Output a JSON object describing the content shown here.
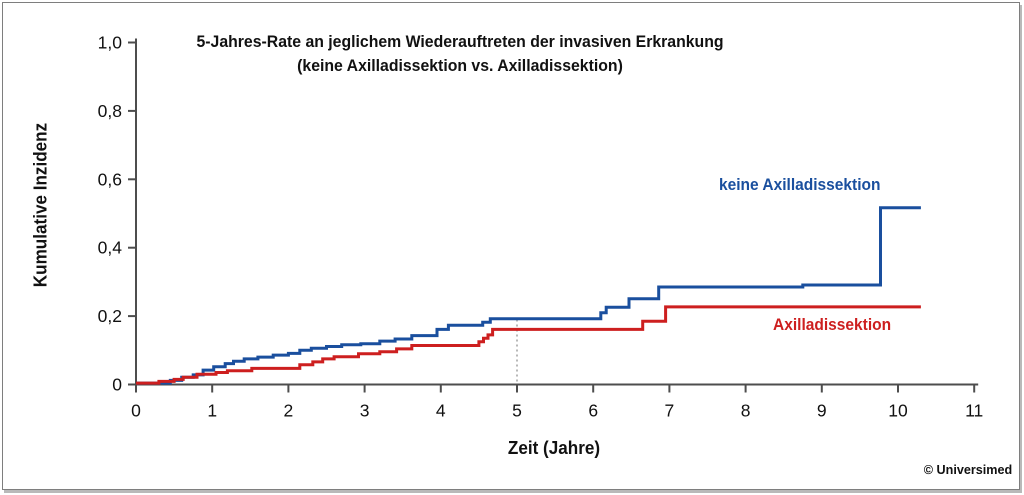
{
  "credit": "© Universimed",
  "chart_data": {
    "type": "line",
    "subtype": "step-after-cumulative-incidence",
    "title_line1": "5-Jahres-Rate an jeglichem Wiederauftreten der invasiven Erkrankung",
    "title_line2": "(keine Axilladissektion vs. Axilladissektion)",
    "xlabel": "Zeit (Jahre)",
    "ylabel": "Kumulative Inzidenz",
    "xlim": [
      0,
      11
    ],
    "ylim": [
      0,
      1.0
    ],
    "grid": "off",
    "legend_position": "labels-on-plot",
    "x_ticks": [
      0,
      1,
      2,
      3,
      4,
      5,
      6,
      7,
      8,
      9,
      10,
      11
    ],
    "y_ticks": [
      {
        "value": 0,
        "label": "0"
      },
      {
        "value": 0.2,
        "label": "0,2"
      },
      {
        "value": 0.4,
        "label": "0,4"
      },
      {
        "value": 0.6,
        "label": "0,6"
      },
      {
        "value": 0.8,
        "label": "0,8"
      },
      {
        "value": 1.0,
        "label": "1,0"
      }
    ],
    "reference_line": {
      "x": 5,
      "from": 0,
      "to": 0.19,
      "style": "dashed",
      "color": "#999999"
    },
    "axis_color": "#4d4d4d",
    "text_color": "#111111",
    "series": [
      {
        "name": "keine Axilladissektion",
        "color": "#1a4f9e",
        "end_x": 10.3,
        "points": [
          [
            0,
            0.004
          ],
          [
            0.45,
            0.012
          ],
          [
            0.6,
            0.021
          ],
          [
            0.75,
            0.028
          ],
          [
            0.88,
            0.042
          ],
          [
            1.02,
            0.052
          ],
          [
            1.17,
            0.061
          ],
          [
            1.28,
            0.068
          ],
          [
            1.42,
            0.075
          ],
          [
            1.6,
            0.08
          ],
          [
            1.8,
            0.086
          ],
          [
            2.0,
            0.091
          ],
          [
            2.15,
            0.1
          ],
          [
            2.3,
            0.106
          ],
          [
            2.5,
            0.111
          ],
          [
            2.7,
            0.116
          ],
          [
            2.95,
            0.119
          ],
          [
            3.2,
            0.127
          ],
          [
            3.4,
            0.133
          ],
          [
            3.62,
            0.143
          ],
          [
            3.95,
            0.161
          ],
          [
            4.1,
            0.173
          ],
          [
            4.55,
            0.182
          ],
          [
            4.65,
            0.192
          ],
          [
            6.1,
            0.21
          ],
          [
            6.17,
            0.226
          ],
          [
            6.47,
            0.251
          ],
          [
            6.86,
            0.285
          ],
          [
            8.75,
            0.291
          ],
          [
            9.77,
            0.517
          ]
        ]
      },
      {
        "name": "Axilladissektion",
        "color": "#cd1f1f",
        "end_x": 10.3,
        "points": [
          [
            0,
            0.004
          ],
          [
            0.3,
            0.009
          ],
          [
            0.5,
            0.015
          ],
          [
            0.62,
            0.021
          ],
          [
            0.8,
            0.03
          ],
          [
            1.05,
            0.035
          ],
          [
            1.2,
            0.04
          ],
          [
            1.52,
            0.047
          ],
          [
            2.15,
            0.058
          ],
          [
            2.32,
            0.066
          ],
          [
            2.45,
            0.075
          ],
          [
            2.6,
            0.081
          ],
          [
            2.92,
            0.09
          ],
          [
            3.2,
            0.096
          ],
          [
            3.42,
            0.104
          ],
          [
            3.62,
            0.114
          ],
          [
            4.5,
            0.125
          ],
          [
            4.56,
            0.135
          ],
          [
            4.62,
            0.145
          ],
          [
            4.68,
            0.161
          ],
          [
            6.65,
            0.185
          ],
          [
            6.95,
            0.227
          ]
        ]
      }
    ]
  }
}
